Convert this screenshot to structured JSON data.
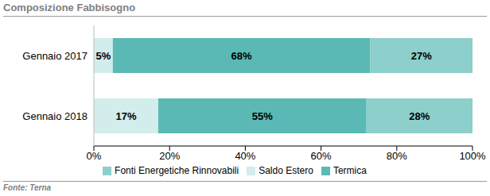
{
  "chart_data": {
    "type": "bar",
    "title": "Composizione Fabbisogno",
    "source": "Fonte: Terna",
    "orientation": "horizontal",
    "stacked": true,
    "data_labels": true,
    "grid": false,
    "legend": "bottom",
    "categories": [
      "Gennaio 2017",
      "Gennaio 2018"
    ],
    "series": [
      {
        "name": "Saldo Estero",
        "color": "#d3ecec",
        "values": [
          5,
          17
        ],
        "value_labels": [
          "5%",
          "17%"
        ]
      },
      {
        "name": "Termica",
        "color": "#5ab9b5",
        "values": [
          68,
          55
        ],
        "value_labels": [
          "68%",
          "55%"
        ]
      },
      {
        "name": "Fonti Energetiche Rinnovabili",
        "color": "#8ccfcb",
        "values": [
          27,
          28
        ],
        "value_labels": [
          "27%",
          "28%"
        ]
      }
    ],
    "xlim": [
      0,
      100
    ],
    "xticks": [
      {
        "value": 0,
        "label": "0%"
      },
      {
        "value": 20,
        "label": "20%"
      },
      {
        "value": 40,
        "label": "40%"
      },
      {
        "value": 60,
        "label": "60%"
      },
      {
        "value": 80,
        "label": "80%"
      },
      {
        "value": 100,
        "label": "100%"
      }
    ]
  }
}
